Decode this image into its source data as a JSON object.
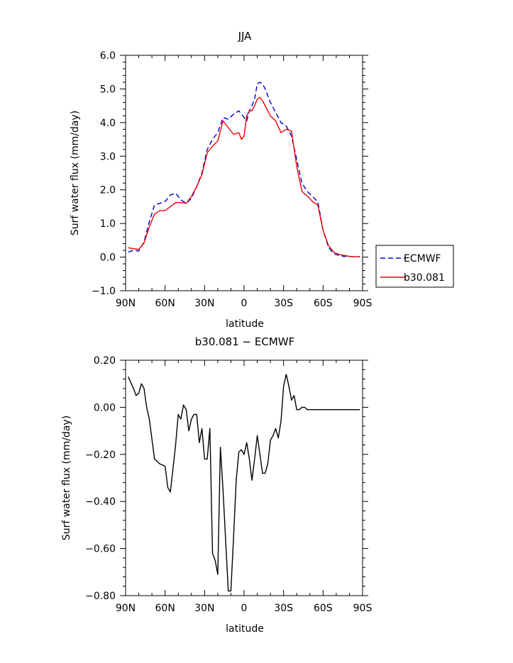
{
  "chart_data": [
    {
      "type": "line",
      "title": "JJA",
      "xlabel": "latitude",
      "ylabel": "Surf water flux (mm/day)",
      "xlim": [
        90,
        -90
      ],
      "ylim": [
        -1.0,
        6.0
      ],
      "x_ticks": [
        90,
        60,
        30,
        0,
        -30,
        -60,
        -90
      ],
      "x_tick_labels": [
        "90N",
        "60N",
        "30N",
        "0",
        "30S",
        "60S",
        "90S"
      ],
      "y_ticks": [
        -1,
        0,
        1,
        2,
        3,
        4,
        5,
        6
      ],
      "y_tick_labels": [
        "−1.0",
        "0.0",
        "1.0",
        "2.0",
        "3.0",
        "4.0",
        "5.0",
        "6.0"
      ],
      "legend_position": "right",
      "series": [
        {
          "name": "ECMWF",
          "color": "#0000cc",
          "dash": "dashed",
          "x": [
            88,
            84,
            80,
            76,
            72,
            68,
            64,
            60,
            56,
            52,
            48,
            44,
            40,
            36,
            32,
            28,
            24,
            20,
            16,
            12,
            8,
            4,
            0,
            -2,
            -4,
            -6,
            -8,
            -10,
            -12,
            -14,
            -16,
            -18,
            -20,
            -24,
            -28,
            -32,
            -36,
            -40,
            -44,
            -48,
            -52,
            -56,
            -60,
            -64,
            -68,
            -72,
            -76,
            -80,
            -84,
            -88
          ],
          "y": [
            0.15,
            0.2,
            0.18,
            0.45,
            1.05,
            1.55,
            1.6,
            1.65,
            1.85,
            1.9,
            1.7,
            1.6,
            1.75,
            2.1,
            2.5,
            3.2,
            3.5,
            3.7,
            4.15,
            4.1,
            4.25,
            4.35,
            4.15,
            4.05,
            4.35,
            4.5,
            4.7,
            5.15,
            5.2,
            5.15,
            5.0,
            4.8,
            4.6,
            4.3,
            4.0,
            3.9,
            3.6,
            2.9,
            2.2,
            1.95,
            1.8,
            1.65,
            0.8,
            0.3,
            0.1,
            0.05,
            0.02,
            0.02,
            0.01,
            0.01
          ]
        },
        {
          "name": "b30.081",
          "color": "#ee0000",
          "dash": "solid",
          "x": [
            88,
            84,
            80,
            76,
            72,
            68,
            64,
            60,
            56,
            52,
            48,
            44,
            40,
            36,
            32,
            28,
            24,
            20,
            16,
            12,
            8,
            4,
            2,
            0,
            -2,
            -4,
            -6,
            -8,
            -10,
            -12,
            -14,
            -16,
            -18,
            -20,
            -24,
            -28,
            -32,
            -36,
            -40,
            -44,
            -48,
            -52,
            -56,
            -60,
            -64,
            -68,
            -72,
            -76,
            -80,
            -84,
            -88
          ],
          "y": [
            0.28,
            0.25,
            0.23,
            0.42,
            0.9,
            1.28,
            1.38,
            1.38,
            1.5,
            1.62,
            1.62,
            1.6,
            1.8,
            2.1,
            2.45,
            3.1,
            3.3,
            3.45,
            4.05,
            3.85,
            3.65,
            3.7,
            3.5,
            3.6,
            4.2,
            4.35,
            4.35,
            4.5,
            4.7,
            4.75,
            4.65,
            4.5,
            4.35,
            4.2,
            4.05,
            3.7,
            3.8,
            3.75,
            2.7,
            1.95,
            1.82,
            1.65,
            1.55,
            0.8,
            0.35,
            0.15,
            0.08,
            0.05,
            0.02,
            0.01,
            0.01
          ]
        }
      ]
    },
    {
      "type": "line",
      "title": "b30.081 − ECMWF",
      "xlabel": "latitude",
      "ylabel": "Surf water flux (mm/day)",
      "xlim": [
        90,
        -90
      ],
      "ylim": [
        -0.8,
        0.2
      ],
      "x_ticks": [
        90,
        60,
        30,
        0,
        -30,
        -60,
        -90
      ],
      "x_tick_labels": [
        "90N",
        "60N",
        "30N",
        "0",
        "30S",
        "60S",
        "90S"
      ],
      "y_ticks": [
        -0.8,
        -0.6,
        -0.4,
        -0.2,
        0.0,
        0.2
      ],
      "y_tick_labels": [
        "−0.80",
        "−0.60",
        "−0.40",
        "−0.20",
        "0.00",
        "0.20"
      ],
      "series": [
        {
          "color": "#000000",
          "dash": "solid",
          "x": [
            88,
            84,
            82,
            80,
            78,
            76,
            74,
            72,
            68,
            64,
            60,
            58,
            56,
            54,
            52,
            50,
            48,
            46,
            44,
            42,
            40,
            38,
            36,
            34,
            32,
            30,
            28,
            26,
            24,
            22,
            20,
            18,
            16,
            12,
            10,
            8,
            6,
            4,
            2,
            0,
            -2,
            -4,
            -6,
            -8,
            -10,
            -12,
            -14,
            -16,
            -18,
            -20,
            -22,
            -24,
            -26,
            -28,
            -30,
            -32,
            -34,
            -36,
            -38,
            -40,
            -42,
            -44,
            -46,
            -48,
            -50,
            -52,
            -54,
            -56,
            -58,
            -60,
            -62,
            -64,
            -66,
            -68,
            -70,
            -72,
            -74,
            -76,
            -78,
            -80,
            -82,
            -84,
            -86,
            -88
          ],
          "y": [
            0.13,
            0.08,
            0.05,
            0.06,
            0.1,
            0.08,
            0.0,
            -0.05,
            -0.22,
            -0.24,
            -0.25,
            -0.34,
            -0.36,
            -0.26,
            -0.16,
            -0.03,
            -0.05,
            0.01,
            -0.01,
            -0.1,
            -0.05,
            -0.03,
            -0.03,
            -0.15,
            -0.09,
            -0.22,
            -0.22,
            -0.09,
            -0.62,
            -0.65,
            -0.71,
            -0.17,
            -0.35,
            -0.78,
            -0.78,
            -0.55,
            -0.31,
            -0.19,
            -0.18,
            -0.2,
            -0.15,
            -0.22,
            -0.31,
            -0.22,
            -0.12,
            -0.2,
            -0.28,
            -0.28,
            -0.24,
            -0.14,
            -0.12,
            -0.09,
            -0.13,
            -0.06,
            0.09,
            0.14,
            0.09,
            0.03,
            0.05,
            -0.01,
            -0.01,
            0.0,
            0.0,
            -0.01,
            -0.01,
            -0.01,
            -0.01,
            -0.01,
            -0.01,
            -0.01,
            -0.01,
            -0.01,
            -0.01,
            -0.01,
            -0.01,
            -0.01,
            -0.01,
            -0.01,
            -0.01,
            -0.01,
            -0.01,
            -0.01,
            -0.01,
            -0.01
          ]
        }
      ]
    }
  ]
}
